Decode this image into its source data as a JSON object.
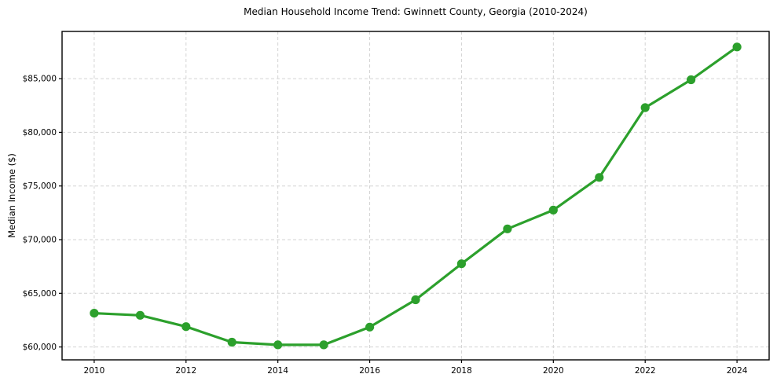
{
  "page": {
    "background": "#ffffff"
  },
  "chart_data": {
    "type": "line",
    "title": "Median Household Income Trend: Gwinnett County, Georgia (2010-2024)",
    "xlabel": "",
    "ylabel": "Median Income ($)",
    "series": [
      {
        "name": "Median household income",
        "x": [
          2010,
          2011,
          2012,
          2013,
          2014,
          2015,
          2016,
          2017,
          2018,
          2019,
          2020,
          2021,
          2022,
          2023,
          2024
        ],
        "values": [
          63150,
          62950,
          61900,
          60450,
          60200,
          60200,
          61850,
          64400,
          67750,
          71000,
          72750,
          75800,
          82300,
          84900,
          87950
        ]
      }
    ],
    "xlim": [
      2009.3,
      2024.7
    ],
    "ylim": [
      58800,
      89400
    ],
    "xticks": {
      "values": [
        2010,
        2012,
        2014,
        2016,
        2018,
        2020,
        2022,
        2024
      ],
      "labels": [
        "2010",
        "2012",
        "2014",
        "2016",
        "2018",
        "2020",
        "2022",
        "2024"
      ]
    },
    "yticks": {
      "values": [
        60000,
        65000,
        70000,
        75000,
        80000,
        85000
      ],
      "labels": [
        "$60,000",
        "$65,000",
        "$70,000",
        "$75,000",
        "$80,000",
        "$85,000"
      ]
    },
    "grid": true,
    "grid_style": "dashed",
    "legend": "none",
    "line_color": "#2ca02c",
    "marker": "circle",
    "grid_color": "#d3d3d3",
    "axis_color": "#000000",
    "text_color": "#000000",
    "background": "#ffffff"
  }
}
